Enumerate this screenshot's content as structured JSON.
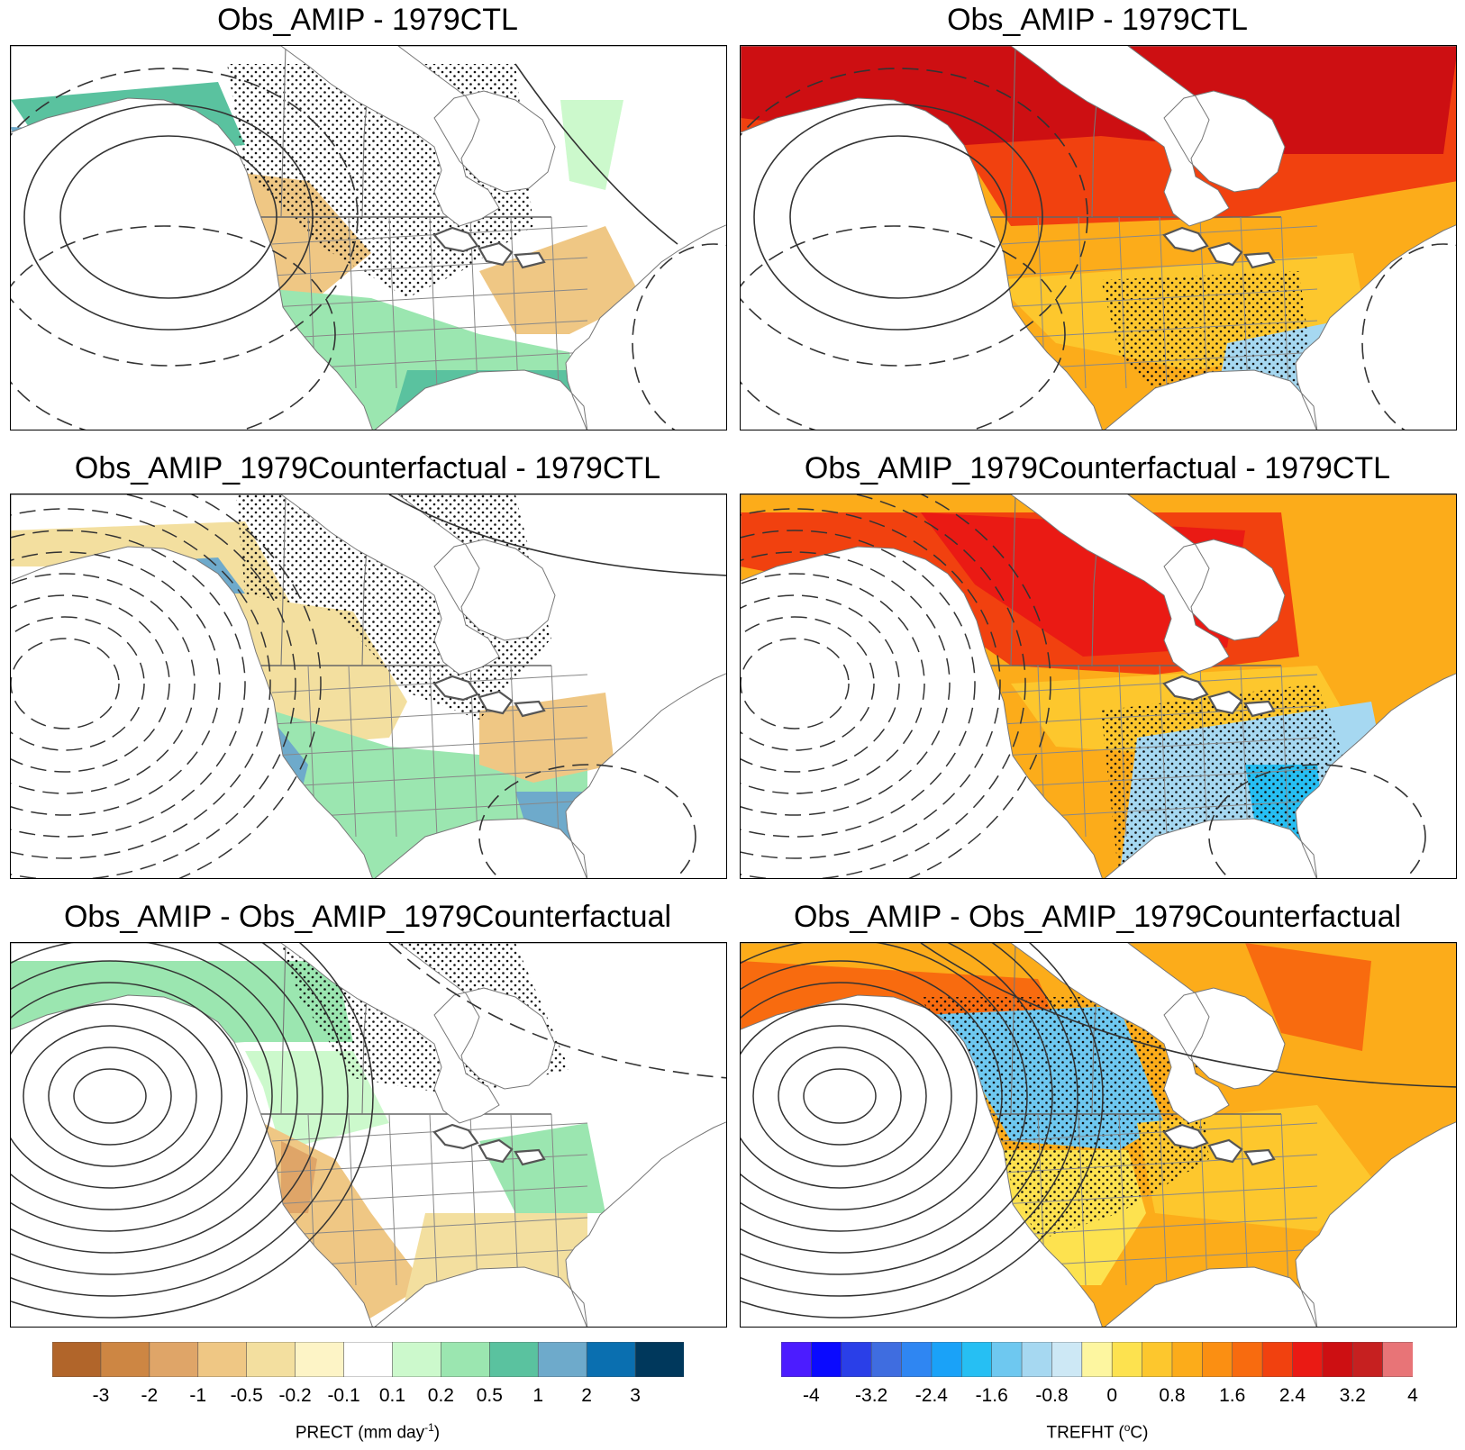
{
  "panels": [
    {
      "title": "Obs_AMIP - 1979CTL",
      "variable": "PRECT"
    },
    {
      "title": "Obs_AMIP - 1979CTL",
      "variable": "TREFHT"
    },
    {
      "title": "Obs_AMIP_1979Counterfactual - 1979CTL",
      "variable": "PRECT"
    },
    {
      "title": "Obs_AMIP_1979Counterfactual - 1979CTL",
      "variable": "TREFHT"
    },
    {
      "title": "Obs_AMIP - Obs_AMIP_1979Counterfactual",
      "variable": "PRECT"
    },
    {
      "title": "Obs_AMIP - Obs_AMIP_1979Counterfactual",
      "variable": "TREFHT"
    }
  ],
  "colorbars": {
    "prect": {
      "label_main": "PRECT (mm day",
      "label_sup": "-1",
      "label_end": ")",
      "ticks": [
        "-3",
        "-2",
        "-1",
        "-0.5",
        "-0.2",
        "-0.1",
        "0.1",
        "0.2",
        "0.5",
        "1",
        "2",
        "3"
      ],
      "colors": [
        "#b1652a",
        "#cd8643",
        "#dfa568",
        "#efc784",
        "#f3df9f",
        "#fdf4c6",
        "#ffffff",
        "#ccf9cc",
        "#9be6b0",
        "#5ac29f",
        "#6eaacb",
        "#0a6fb0",
        "#00385c"
      ]
    },
    "trefht": {
      "label_main": "TREFHT (",
      "label_sup": "o",
      "label_end": "C)",
      "ticks": [
        "-4",
        "-3.2",
        "-2.4",
        "-1.6",
        "-0.8",
        "0",
        "0.8",
        "1.6",
        "2.4",
        "3.2",
        "4"
      ],
      "colors": [
        "#4c1cff",
        "#0a0aff",
        "#2a3fe8",
        "#3f6de0",
        "#2f86f2",
        "#1aa2f8",
        "#26bff3",
        "#6ec8f0",
        "#a6d8f1",
        "#cde8f5",
        "#fdf6a0",
        "#fde24f",
        "#fdc72d",
        "#fcac1a",
        "#fb8f12",
        "#f86b0f",
        "#f1410f",
        "#ea1a14",
        "#cd0f12",
        "#c62020",
        "#e87477"
      ]
    }
  }
}
